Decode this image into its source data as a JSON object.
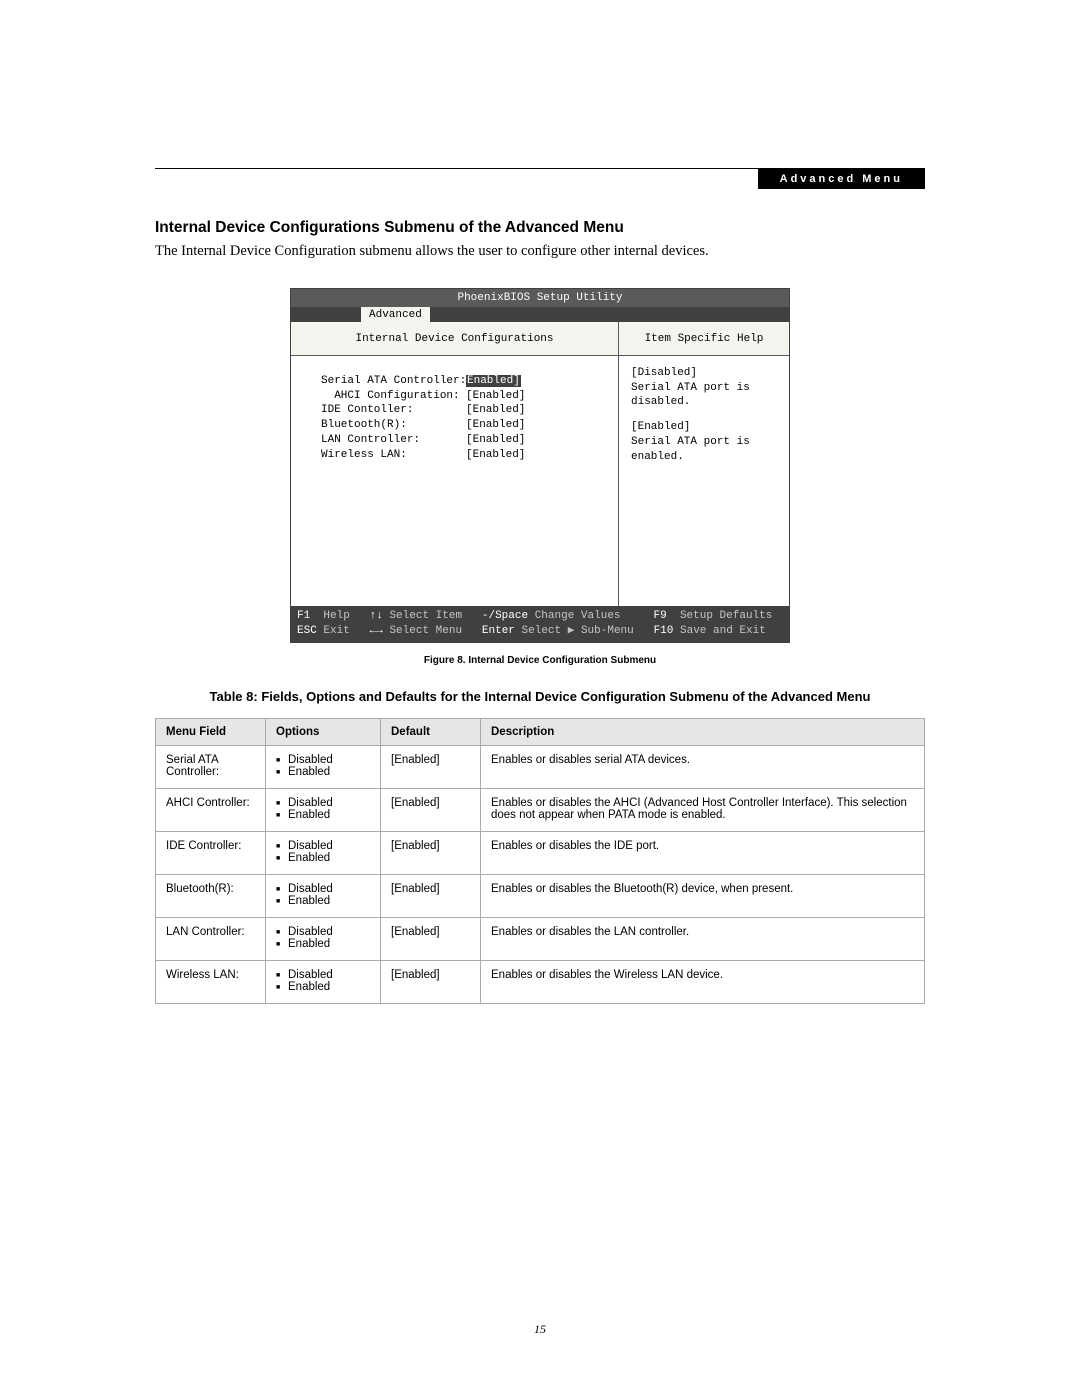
{
  "header": {
    "badge": "Advanced Menu"
  },
  "section": {
    "title": "Internal Device Configurations Submenu of the Advanced Menu",
    "intro": "The Internal Device Configuration submenu allows the user to configure other internal devices."
  },
  "bios": {
    "title": "PhoenixBIOS Setup Utility",
    "tab": "Advanced",
    "left_heading": "Internal Device Configurations",
    "right_heading": "Item Specific Help",
    "options": [
      {
        "label": "Serial ATA Controller:",
        "value": "Enabled]",
        "selected": true,
        "indent": 0
      },
      {
        "label": "AHCI Configuration:",
        "value": "[Enabled]",
        "selected": false,
        "indent": 1
      },
      {
        "label": "IDE Contoller:",
        "value": "[Enabled]",
        "selected": false,
        "indent": 0
      },
      {
        "label": "Bluetooth(R):",
        "value": "[Enabled]",
        "selected": false,
        "indent": 0
      },
      {
        "label": "LAN Controller:",
        "value": "[Enabled]",
        "selected": false,
        "indent": 0
      },
      {
        "label": "Wireless LAN:",
        "value": "[Enabled]",
        "selected": false,
        "indent": 0
      }
    ],
    "help": [
      "[Disabled]\nSerial ATA port is\ndisabled.",
      "[Enabled]\nSerial ATA port is\nenabled."
    ],
    "footer": {
      "row1": {
        "k1": "F1",
        "d1": "Help",
        "k2": "↑↓",
        "d2": "Select Item",
        "k3": "-/Space",
        "d3": "Change Values",
        "k4": "F9",
        "d4": "Setup Defaults"
      },
      "row2": {
        "k1": "ESC",
        "d1": "Exit",
        "k2": "←→",
        "d2": "Select Menu",
        "k3": "Enter",
        "d3": "Select ▶ Sub-Menu",
        "k4": "F10",
        "d4": "Save and Exit"
      }
    }
  },
  "figure_caption": "Figure 8.   Internal Device Configuration Submenu",
  "table": {
    "title": "Table 8: Fields, Options and Defaults for the Internal Device Configuration Submenu of the Advanced Menu",
    "headers": {
      "menu": "Menu Field",
      "options": "Options",
      "def": "Default",
      "desc": "Description"
    },
    "rows": [
      {
        "menu": "Serial ATA Controller:",
        "options": [
          "Disabled",
          "Enabled"
        ],
        "def": "[Enabled]",
        "desc": "Enables or disables serial ATA devices."
      },
      {
        "menu": "AHCI Controller:",
        "options": [
          "Disabled",
          "Enabled"
        ],
        "def": "[Enabled]",
        "desc": "Enables or disables the AHCI (Advanced Host Controller Interface). This selection does not appear when PATA mode is enabled."
      },
      {
        "menu": "IDE Controller:",
        "options": [
          "Disabled",
          "Enabled"
        ],
        "def": "[Enabled]",
        "desc": "Enables or disables the IDE port."
      },
      {
        "menu": "Bluetooth(R):",
        "options": [
          "Disabled",
          "Enabled"
        ],
        "def": "[Enabled]",
        "desc": "Enables or disables the Bluetooth(R) device, when present."
      },
      {
        "menu": "LAN Controller:",
        "options": [
          "Disabled",
          "Enabled"
        ],
        "def": "[Enabled]",
        "desc": "Enables or disables the LAN controller."
      },
      {
        "menu": "Wireless LAN:",
        "options": [
          "Disabled",
          "Enabled"
        ],
        "def": "[Enabled]",
        "desc": "Enables or disables the Wireless LAN device."
      }
    ]
  },
  "page_number": "15"
}
